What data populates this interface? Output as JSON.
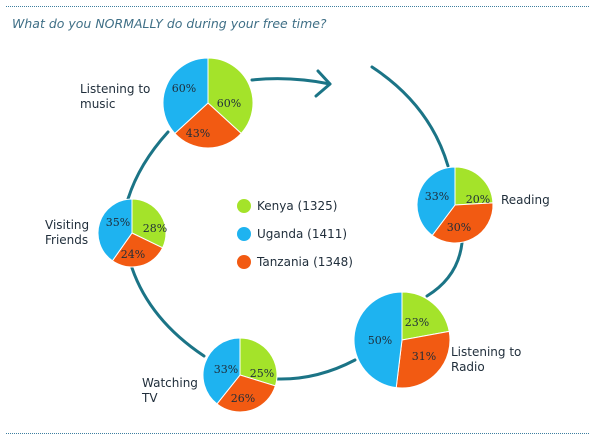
{
  "question": "What do you NORMALLY do during your free time?",
  "colors": {
    "kenya": "#a4e32a",
    "uganda": "#1eb3f0",
    "tanzania": "#f25a12",
    "arc": "#1b7486"
  },
  "chart_data": {
    "type": "pie",
    "title": "What do you NORMALLY do during your free time?",
    "series": [
      {
        "name": "Kenya (1325)",
        "color": "#a4e32a"
      },
      {
        "name": "Uganda (1411)",
        "color": "#1eb3f0"
      },
      {
        "name": "Tanzania (1348)",
        "color": "#f25a12"
      }
    ],
    "legend_position": "center",
    "pies": [
      {
        "id": "music",
        "label": [
          "Listening to",
          "music"
        ],
        "values": [
          60,
          60,
          43
        ],
        "labels": [
          "60%",
          "60%",
          "43%"
        ]
      },
      {
        "id": "reading",
        "label": [
          "Reading"
        ],
        "values": [
          20,
          33,
          30
        ],
        "labels": [
          "20%",
          "33%",
          "30%"
        ]
      },
      {
        "id": "radio",
        "label": [
          "Listening to",
          "Radio"
        ],
        "values": [
          23,
          50,
          31
        ],
        "labels": [
          "23%",
          "50%",
          "31%"
        ]
      },
      {
        "id": "tv",
        "label": [
          "Watching",
          "TV"
        ],
        "values": [
          25,
          33,
          26
        ],
        "labels": [
          "25%",
          "33%",
          "26%"
        ]
      },
      {
        "id": "friends",
        "label": [
          "Visiting",
          "Friends"
        ],
        "values": [
          28,
          35,
          24
        ],
        "labels": [
          "28%",
          "35%",
          "24%"
        ]
      }
    ]
  }
}
